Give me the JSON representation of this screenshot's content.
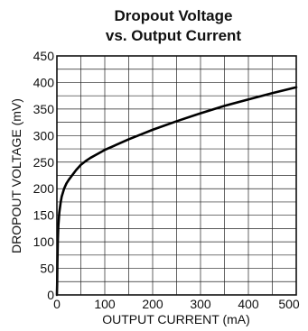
{
  "chart_data": {
    "type": "line",
    "title_line1": "Dropout Voltage",
    "title_line2": "vs. Output Current",
    "xlabel": "OUTPUT CURRENT (mA)",
    "ylabel": "DROPOUT VOLTAGE (mV)",
    "xlim": [
      0,
      500
    ],
    "ylim": [
      0,
      450
    ],
    "x_ticks": [
      "0",
      "100",
      "200",
      "300",
      "400",
      "500"
    ],
    "y_ticks": [
      "0",
      "50",
      "100",
      "150",
      "200",
      "250",
      "300",
      "350",
      "400",
      "450"
    ],
    "grid": true,
    "series": [
      {
        "x": [
          0.5,
          1,
          2,
          3,
          5,
          8,
          10,
          15,
          20,
          25,
          30,
          40,
          50,
          60,
          70,
          80,
          100,
          125,
          150,
          175,
          200,
          250,
          300,
          350,
          400,
          450,
          500
        ],
        "y": [
          20,
          60,
          105,
          130,
          155,
          175,
          185,
          200,
          210,
          217,
          223,
          235,
          245,
          252,
          258,
          263,
          273,
          283,
          293,
          302,
          311,
          327,
          342,
          356,
          368,
          380,
          391
        ]
      }
    ]
  }
}
